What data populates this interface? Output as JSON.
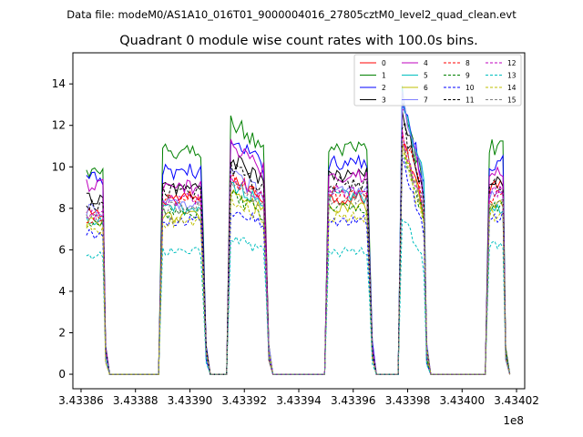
{
  "header": {
    "data_file": "Data file: modeM0/AS1A10_016T01_9000004016_27805cztM0_level2_quad_clean.evt"
  },
  "chart_data": {
    "type": "line",
    "title": "Quadrant 0 module wise count rates with 100.0s bins.",
    "xlabel": "",
    "ylabel": "",
    "offset_label": "1e8",
    "xlim": [
      343385.7,
      343402.3
    ],
    "ylim": [
      -0.7,
      15.5
    ],
    "x_scale_note": "x values in units of 1e3 s (axis offset 1e8)",
    "x_ticks": [
      343386,
      343388,
      343390,
      343392,
      343394,
      343396,
      343398,
      343400,
      343402
    ],
    "x_tick_labels": [
      "3.43386",
      "3.43388",
      "3.43390",
      "3.43392",
      "3.43394",
      "3.43396",
      "3.43398",
      "3.43400",
      "3.43402"
    ],
    "y_ticks": [
      0,
      2,
      4,
      6,
      8,
      10,
      12,
      14
    ],
    "y_tick_labels": [
      "0",
      "2",
      "4",
      "6",
      "8",
      "10",
      "12",
      "14"
    ],
    "grid": false,
    "legend_position": "top-right",
    "legend_columns": 4,
    "segments": [
      {
        "start": 343386.2,
        "end": 343386.9,
        "shape": "flat",
        "profile": "tapered"
      },
      {
        "start": 343389.0,
        "end": 343390.6,
        "shape": "flat",
        "profile": "tapered"
      },
      {
        "start": 343391.5,
        "end": 343392.9,
        "shape": "decline",
        "profile": "tapered"
      },
      {
        "start": 343395.1,
        "end": 343396.7,
        "shape": "flat",
        "profile": "tapered"
      },
      {
        "start": 343397.8,
        "end": 343398.7,
        "shape": "peak",
        "profile": "tapered"
      },
      {
        "start": 343401.0,
        "end": 343401.6,
        "shape": "flat",
        "profile": "tapered"
      }
    ],
    "series": [
      {
        "name": "0",
        "color": "#ff0000",
        "dash": "solid",
        "levels": [
          7.7,
          8.5,
          9.5,
          8.5,
          11.5,
          9.0
        ]
      },
      {
        "name": "1",
        "color": "#008000",
        "dash": "solid",
        "levels": [
          9.7,
          10.7,
          12.2,
          10.8,
          13.0,
          11.0
        ]
      },
      {
        "name": "2",
        "color": "#0000ff",
        "dash": "solid",
        "levels": [
          9.4,
          9.8,
          11.2,
          10.2,
          13.5,
          10.2
        ]
      },
      {
        "name": "3",
        "color": "#000000",
        "dash": "solid",
        "levels": [
          8.5,
          9.0,
          10.4,
          9.6,
          12.5,
          9.4
        ]
      },
      {
        "name": "4",
        "color": "#bf00bf",
        "dash": "solid",
        "levels": [
          9.1,
          9.0,
          11.0,
          9.6,
          13.0,
          9.8
        ]
      },
      {
        "name": "5",
        "color": "#00bfbf",
        "dash": "solid",
        "levels": [
          7.3,
          8.0,
          9.2,
          8.6,
          13.6,
          8.0
        ]
      },
      {
        "name": "6",
        "color": "#bfbf00",
        "dash": "solid",
        "levels": [
          7.4,
          7.6,
          8.8,
          8.0,
          11.2,
          8.1
        ]
      },
      {
        "name": "7",
        "color": "#7f7fff",
        "dash": "solid",
        "levels": [
          7.9,
          8.2,
          9.6,
          8.8,
          13.2,
          8.6
        ]
      },
      {
        "name": "8",
        "color": "#ff0000",
        "dash": "dashed",
        "levels": [
          7.5,
          8.4,
          9.4,
          8.7,
          11.8,
          8.6
        ]
      },
      {
        "name": "9",
        "color": "#008000",
        "dash": "dashed",
        "levels": [
          7.2,
          7.8,
          8.6,
          8.0,
          11.0,
          8.2
        ]
      },
      {
        "name": "10",
        "color": "#0000ff",
        "dash": "dashed",
        "levels": [
          6.8,
          7.4,
          8.0,
          7.4,
          10.4,
          7.6
        ]
      },
      {
        "name": "11",
        "color": "#000000",
        "dash": "dashed",
        "levels": [
          8.2,
          8.8,
          10.0,
          9.2,
          12.2,
          9.2
        ]
      },
      {
        "name": "12",
        "color": "#bf00bf",
        "dash": "dashed",
        "levels": [
          7.6,
          8.4,
          9.6,
          8.8,
          11.6,
          8.8
        ]
      },
      {
        "name": "13",
        "color": "#00bfbf",
        "dash": "dashed",
        "levels": [
          5.7,
          5.9,
          6.6,
          5.9,
          7.6,
          6.2
        ]
      },
      {
        "name": "14",
        "color": "#bfbf00",
        "dash": "dashed",
        "levels": [
          7.0,
          7.3,
          8.4,
          7.6,
          10.6,
          7.7
        ]
      },
      {
        "name": "15",
        "color": "#7f7f7f",
        "dash": "dashed",
        "levels": [
          7.6,
          8.0,
          9.2,
          8.4,
          11.4,
          8.4
        ]
      }
    ]
  }
}
